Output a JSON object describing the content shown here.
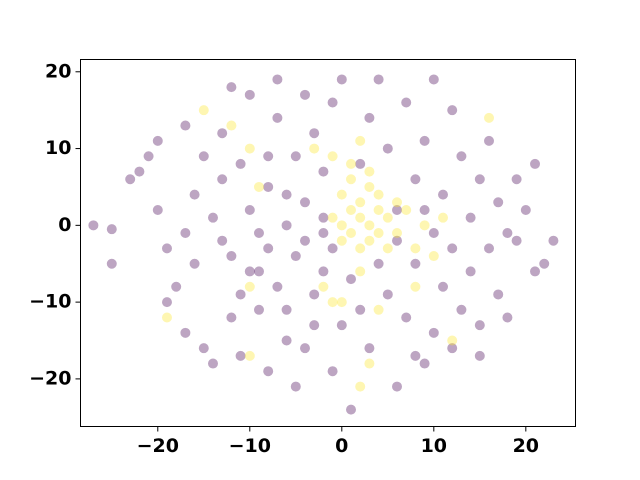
{
  "chart_data": {
    "type": "scatter",
    "xlim": [
      -28.4,
      25.4
    ],
    "ylim": [
      -26.2,
      21.6
    ],
    "xticks": [
      {
        "value": -20,
        "label": "−20"
      },
      {
        "value": -10,
        "label": "−10"
      },
      0,
      10,
      20
    ],
    "yticks": [
      {
        "value": -20,
        "label": "−20"
      },
      {
        "value": -10,
        "label": "−10"
      },
      0,
      10,
      20
    ],
    "alpha": 0.35,
    "series": [
      {
        "color": "#440154",
        "x": [
          -27,
          -25,
          -25,
          -23,
          -22,
          -21,
          -20,
          -20,
          -19,
          -19,
          -18,
          -17,
          -17,
          -16,
          -16,
          -15,
          -14,
          -14,
          -13,
          -13,
          -12,
          -12,
          -12,
          -11,
          -11,
          -10,
          -10,
          -10,
          -9,
          -9,
          -8,
          -8,
          -8,
          -7,
          -7,
          -7,
          -6,
          -6,
          -6,
          -5,
          -5,
          -5,
          -4,
          -4,
          -4,
          -3,
          -3,
          -3,
          -2,
          -2,
          -1,
          -1,
          -1,
          0,
          0,
          1,
          1,
          2,
          3,
          3,
          4,
          4,
          5,
          5,
          6,
          6,
          7,
          7,
          8,
          8,
          8,
          9,
          9,
          10,
          10,
          10,
          11,
          11,
          12,
          12,
          13,
          13,
          14,
          14,
          15,
          15,
          16,
          16,
          17,
          17,
          18,
          18,
          19,
          19,
          20,
          21,
          21,
          22,
          23,
          -15,
          -11,
          -8,
          -13,
          -6,
          -2,
          6,
          12,
          2,
          -9,
          -4,
          15,
          9,
          -17,
          -2
        ],
        "values": [
          0,
          -0.5,
          -5,
          6,
          7,
          9,
          11,
          2,
          -3,
          -10,
          -8,
          -14,
          13,
          4,
          -5,
          -16,
          -18,
          1,
          12,
          6,
          18,
          -12,
          -4,
          -17,
          8,
          2,
          -6,
          17,
          -1,
          -11,
          5,
          -19,
          -3,
          19,
          14,
          -8,
          0,
          4,
          -15,
          -4,
          9,
          -21,
          -2,
          17,
          3,
          -9,
          -13,
          12,
          -6,
          1,
          -19,
          16,
          -3,
          -13,
          19,
          -24,
          -7,
          -11,
          -16,
          14,
          -5,
          19,
          -9,
          10,
          -21,
          -2,
          -12,
          16,
          -17,
          -5,
          6,
          -18,
          11,
          19,
          -14,
          -1,
          4,
          -8,
          15,
          -3,
          -11,
          9,
          1,
          -6,
          -13,
          6,
          11,
          -3,
          3,
          -9,
          -1,
          -12,
          6,
          -2,
          2,
          -6,
          8,
          -5,
          -2,
          9,
          -9,
          9,
          -2,
          -11,
          7,
          2,
          -16,
          8,
          -6,
          -16,
          -17,
          2,
          -1,
          -1
        ]
      },
      {
        "color": "#fde725",
        "x": [
          -19,
          -15,
          -12,
          -10,
          -9,
          -10,
          -10,
          -3,
          -1,
          0,
          0,
          1,
          1,
          1,
          2,
          2,
          2,
          3,
          3,
          3,
          4,
          4,
          4,
          5,
          5,
          6,
          6,
          0,
          -1,
          1,
          2,
          3,
          7,
          8,
          9,
          10,
          11,
          -1,
          3,
          2,
          12,
          16,
          8,
          -2,
          2,
          0,
          4
        ],
        "values": [
          -12,
          15,
          13,
          10,
          5,
          -17,
          -8,
          10,
          9,
          4,
          0,
          2,
          -1,
          6,
          3,
          -3,
          1,
          5,
          -2,
          0,
          2,
          -1,
          4,
          1,
          -3,
          3,
          -1,
          -2,
          1,
          8,
          -6,
          7,
          2,
          -3,
          0,
          -4,
          1,
          -10,
          -18,
          -21,
          -15,
          14,
          -8,
          -8,
          11,
          -10,
          -11
        ]
      }
    ]
  }
}
